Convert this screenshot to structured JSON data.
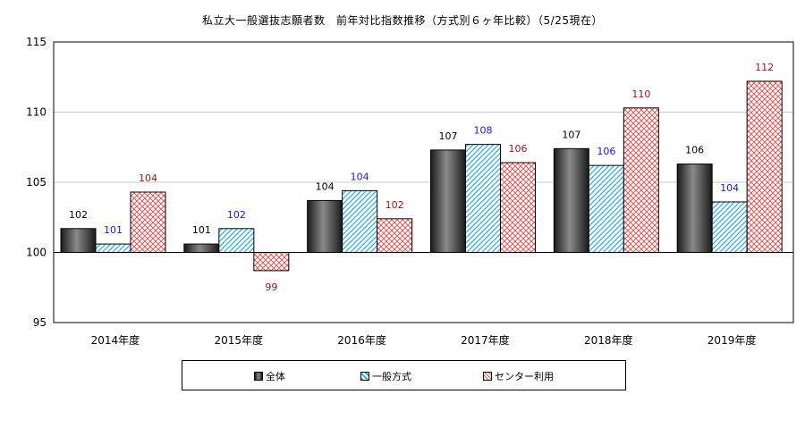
{
  "chart_data": {
    "type": "bar",
    "title": "私立大一般選抜志願者数　前年対比指数推移（方式別６ヶ年比較）（5/25現在）",
    "categories": [
      "2014年度",
      "2015年度",
      "2016年度",
      "2017年度",
      "2018年度",
      "2019年度"
    ],
    "series": [
      {
        "name": "全体",
        "values": [
          101.7,
          100.6,
          103.7,
          107.3,
          107.4,
          106.3
        ],
        "labels": [
          "102",
          "101",
          "104",
          "107",
          "107",
          "106"
        ],
        "label_color": "#000000"
      },
      {
        "name": "一般方式",
        "values": [
          100.6,
          101.7,
          104.4,
          107.7,
          106.2,
          103.6
        ],
        "labels": [
          "101",
          "102",
          "104",
          "108",
          "106",
          "104"
        ],
        "label_color": "#1a1acc"
      },
      {
        "name": "センター利用",
        "values": [
          104.3,
          98.7,
          102.4,
          106.4,
          110.3,
          112.2
        ],
        "labels": [
          "104",
          "99",
          "102",
          "106",
          "110",
          "112"
        ],
        "label_color": "#8b1a1a"
      }
    ],
    "baseline": 100,
    "ylim": [
      95,
      115
    ],
    "yticks": [
      "95",
      "100",
      "105",
      "110",
      "115"
    ],
    "grid": true,
    "legend": "bottom"
  },
  "colors": {
    "series1": "#3a3a3a",
    "series2": "#29a8e0",
    "series3": "#e05a5a"
  }
}
